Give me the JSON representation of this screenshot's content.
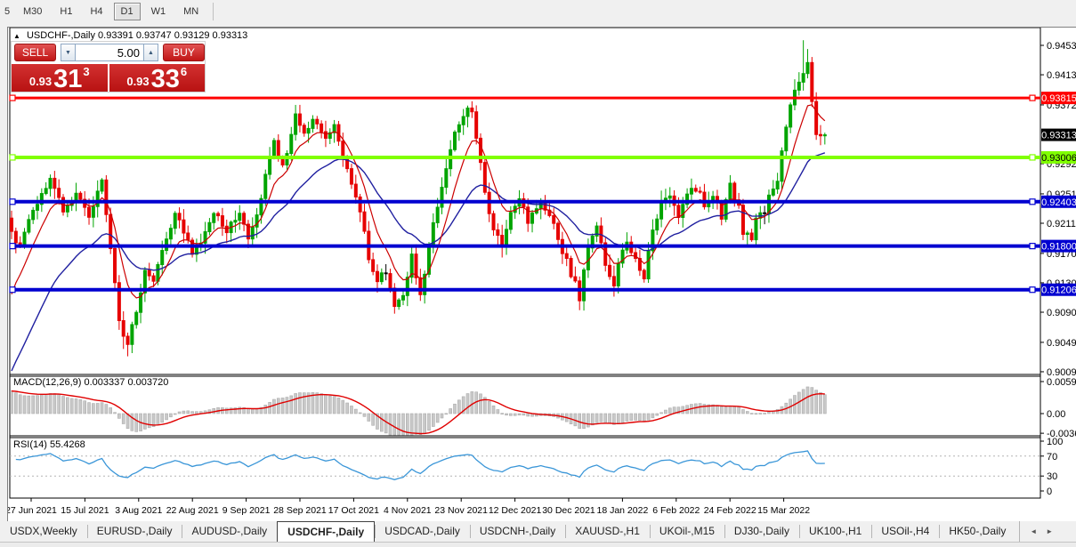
{
  "toolbar": {
    "timeframes": [
      {
        "label": "5",
        "active": false
      },
      {
        "label": "M30",
        "active": false
      },
      {
        "label": "H1",
        "active": false
      },
      {
        "label": "H4",
        "active": false
      },
      {
        "label": "D1",
        "active": true
      },
      {
        "label": "W1",
        "active": false
      },
      {
        "label": "MN",
        "active": false
      }
    ]
  },
  "icons": {
    "collapse_up": "▲",
    "spinner_up": "▲",
    "spinner_down": "▼",
    "tab_scroll_left": "◄",
    "tab_scroll_right": "►"
  },
  "chart": {
    "title": {
      "symbol": "USDCHF-,Daily",
      "open": "0.93391",
      "high": "0.93747",
      "low": "0.93129",
      "close": "0.93313"
    },
    "trade_panel": {
      "sell_label": "SELL",
      "buy_label": "BUY",
      "volume": "5.00",
      "sell_price": {
        "prefix": "0.93",
        "big": "31",
        "pip": "3"
      },
      "buy_price": {
        "prefix": "0.93",
        "big": "33",
        "pip": "6"
      }
    },
    "macd_label": {
      "name": "MACD(12,26,9)",
      "value_main": "0.003337",
      "value_signal": "0.003720"
    },
    "rsi_label": {
      "name": "RSI(14)",
      "value": "55.4268"
    }
  },
  "chart_data": {
    "type": "candlestick",
    "symbol": "USDCHF-,Daily",
    "price_axis_labels": [
      "0.94530",
      "0.94130",
      "0.93720",
      "0.92920",
      "0.92510",
      "0.92110",
      "0.91700",
      "0.91300",
      "0.90900",
      "0.90490",
      "0.90090"
    ],
    "current_price": {
      "value": 0.93313,
      "label": "0.93313",
      "bg": "#000000",
      "fg": "#ffffff"
    },
    "hlines": [
      {
        "value": 0.93815,
        "label": "0.93815",
        "color": "#ff0000",
        "width": 3,
        "label_fg": "#ffffff"
      },
      {
        "value": 0.93006,
        "label": "0.93006",
        "color": "#80ff00",
        "width": 4,
        "label_fg": "#000000"
      },
      {
        "value": 0.92403,
        "label": "0.92403",
        "color": "#0000d0",
        "width": 4,
        "label_fg": "#ffffff"
      },
      {
        "value": 0.918,
        "label": "0.91800",
        "color": "#0000d0",
        "width": 4,
        "label_fg": "#ffffff"
      },
      {
        "value": 0.91206,
        "label": "0.91206",
        "color": "#0000d0",
        "width": 4,
        "label_fg": "#ffffff"
      }
    ],
    "x_axis_labels": [
      "27 Jun 2021",
      "15 Jul 2021",
      "3 Aug 2021",
      "22 Aug 2021",
      "9 Sep 2021",
      "28 Sep 2021",
      "17 Oct 2021",
      "4 Nov 2021",
      "23 Nov 2021",
      "12 Dec 2021",
      "30 Dec 2021",
      "18 Jan 2022",
      "6 Feb 2022",
      "24 Feb 2022",
      "15 Mar 2022"
    ],
    "num_bars": 190,
    "close_anchors": [
      [
        0,
        0.92
      ],
      [
        2,
        0.9178
      ],
      [
        4,
        0.9215
      ],
      [
        6,
        0.924
      ],
      [
        9,
        0.9268
      ],
      [
        12,
        0.923
      ],
      [
        15,
        0.9252
      ],
      [
        18,
        0.9222
      ],
      [
        21,
        0.9266
      ],
      [
        23,
        0.918
      ],
      [
        25,
        0.9075
      ],
      [
        27,
        0.9048
      ],
      [
        29,
        0.9095
      ],
      [
        31,
        0.9148
      ],
      [
        33,
        0.9135
      ],
      [
        35,
        0.9175
      ],
      [
        38,
        0.9222
      ],
      [
        40,
        0.92
      ],
      [
        42,
        0.9172
      ],
      [
        44,
        0.9182
      ],
      [
        47,
        0.9228
      ],
      [
        50,
        0.9198
      ],
      [
        53,
        0.9228
      ],
      [
        55,
        0.9192
      ],
      [
        57,
        0.9218
      ],
      [
        59,
        0.9282
      ],
      [
        61,
        0.932
      ],
      [
        63,
        0.9285
      ],
      [
        66,
        0.936
      ],
      [
        68,
        0.9332
      ],
      [
        70,
        0.9348
      ],
      [
        73,
        0.933
      ],
      [
        75,
        0.9342
      ],
      [
        77,
        0.93
      ],
      [
        79,
        0.9262
      ],
      [
        81,
        0.923
      ],
      [
        83,
        0.9165
      ],
      [
        85,
        0.9135
      ],
      [
        87,
        0.9148
      ],
      [
        89,
        0.9098
      ],
      [
        91,
        0.9118
      ],
      [
        93,
        0.9168
      ],
      [
        95,
        0.9112
      ],
      [
        97,
        0.918
      ],
      [
        99,
        0.9235
      ],
      [
        101,
        0.929
      ],
      [
        103,
        0.933
      ],
      [
        105,
        0.9357
      ],
      [
        107,
        0.9368
      ],
      [
        108,
        0.933
      ],
      [
        110,
        0.9252
      ],
      [
        112,
        0.92
      ],
      [
        114,
        0.9182
      ],
      [
        116,
        0.923
      ],
      [
        118,
        0.9242
      ],
      [
        120,
        0.9216
      ],
      [
        123,
        0.9238
      ],
      [
        125,
        0.9222
      ],
      [
        127,
        0.919
      ],
      [
        129,
        0.9158
      ],
      [
        131,
        0.9128
      ],
      [
        132,
        0.9108
      ],
      [
        134,
        0.918
      ],
      [
        136,
        0.9212
      ],
      [
        138,
        0.9155
      ],
      [
        140,
        0.9128
      ],
      [
        141,
        0.9162
      ],
      [
        143,
        0.9182
      ],
      [
        145,
        0.9158
      ],
      [
        147,
        0.9135
      ],
      [
        148,
        0.9175
      ],
      [
        151,
        0.9242
      ],
      [
        153,
        0.9252
      ],
      [
        155,
        0.9222
      ],
      [
        157,
        0.9248
      ],
      [
        159,
        0.9258
      ],
      [
        161,
        0.9238
      ],
      [
        163,
        0.9248
      ],
      [
        165,
        0.9222
      ],
      [
        167,
        0.9262
      ],
      [
        169,
        0.9232
      ],
      [
        170,
        0.9198
      ],
      [
        172,
        0.9188
      ],
      [
        173,
        0.9215
      ],
      [
        175,
        0.9228
      ],
      [
        176,
        0.9248
      ],
      [
        178,
        0.9272
      ],
      [
        179,
        0.9312
      ],
      [
        181,
        0.9368
      ],
      [
        182,
        0.9396
      ],
      [
        184,
        0.9412
      ],
      [
        185,
        0.9428
      ],
      [
        186,
        0.9372
      ],
      [
        187,
        0.9335
      ],
      [
        189,
        0.93313
      ]
    ],
    "wick_overrides": {
      "26": {
        "low": 0.904
      },
      "27": {
        "low": 0.903
      },
      "66": {
        "high": 0.9372
      },
      "89": {
        "low": 0.9088
      },
      "107": {
        "high": 0.9377
      },
      "184": {
        "high": 0.946
      },
      "185": {
        "high": 0.9448
      }
    },
    "macd": {
      "params": "12,26,9",
      "axis_labels": [
        "0.005963",
        "0.00",
        "-0.003664"
      ],
      "last_main": 0.003337,
      "last_signal": 0.00372
    },
    "rsi": {
      "params": "14",
      "axis_labels": [
        "100",
        "70",
        "30",
        "0"
      ],
      "levels": [
        70,
        30
      ],
      "last_value": 55.4268
    },
    "colors": {
      "bull": "#00a400",
      "bear": "#e60000",
      "doji": "#000000",
      "ma_fast": "#cc0000",
      "ma_slow": "#2020a0",
      "macd_hist_fill": "#c9c9c9",
      "macd_hist_stroke": "#ababab",
      "macd_signal": "#e00000",
      "rsi_line": "#3a96d8",
      "axis_text": "#000000"
    }
  },
  "tabs": {
    "items": [
      "USDX,Weekly",
      "EURUSD-,Daily",
      "AUDUSD-,Daily",
      "USDCHF-,Daily",
      "USDCAD-,Daily",
      "USDCNH-,Daily",
      "XAUUSD-,H1",
      "UKOil-,M15",
      "DJ30-,Daily",
      "UK100-,H1",
      "USOil-,H4",
      "HK50-,Daily"
    ],
    "active_index": 3
  }
}
